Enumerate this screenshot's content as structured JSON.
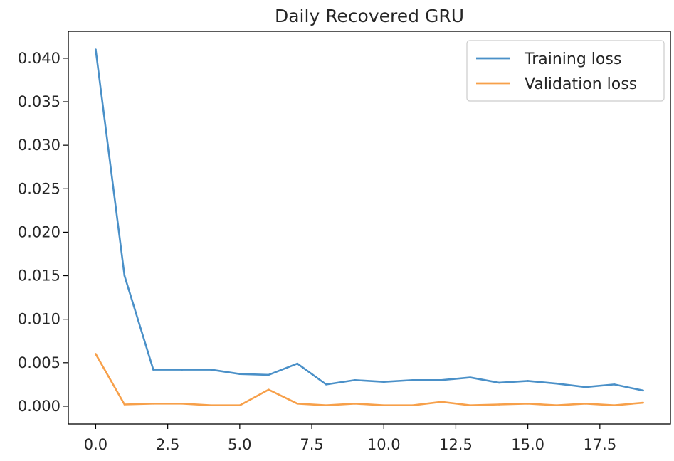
{
  "chart_data": {
    "type": "line",
    "title": "Daily Recovered GRU",
    "xlabel": "",
    "ylabel": "",
    "x": [
      0,
      1,
      2,
      3,
      4,
      5,
      6,
      7,
      8,
      9,
      10,
      11,
      12,
      13,
      14,
      15,
      16,
      17,
      18,
      19
    ],
    "xlim": [
      -0.95,
      19.95
    ],
    "ylim": [
      -0.00205,
      0.0431
    ],
    "x_ticks": [
      0,
      2.5,
      5,
      7.5,
      10,
      12.5,
      15,
      17.5
    ],
    "x_tick_labels": [
      "0.0",
      "2.5",
      "5.0",
      "7.5",
      "10.0",
      "12.5",
      "15.0",
      "17.5"
    ],
    "y_ticks": [
      0,
      0.005,
      0.01,
      0.015,
      0.02,
      0.025,
      0.03,
      0.035,
      0.04
    ],
    "y_tick_labels": [
      "0.000",
      "0.005",
      "0.010",
      "0.015",
      "0.020",
      "0.025",
      "0.030",
      "0.035",
      "0.040"
    ],
    "grid": false,
    "legend": "top-right",
    "series": [
      {
        "name": "Training loss",
        "color": "#4a90c8",
        "values": [
          0.041,
          0.015,
          0.0042,
          0.0042,
          0.0042,
          0.0037,
          0.0036,
          0.0049,
          0.0025,
          0.003,
          0.0028,
          0.003,
          0.003,
          0.0033,
          0.0027,
          0.0029,
          0.0026,
          0.0022,
          0.0025,
          0.0018
        ]
      },
      {
        "name": "Validation loss",
        "color": "#f7a04a",
        "values": [
          0.006,
          0.0002,
          0.0003,
          0.0003,
          0.0001,
          0.0001,
          0.0019,
          0.0003,
          0.0001,
          0.0003,
          0.0001,
          0.0001,
          0.0005,
          0.0001,
          0.0002,
          0.0003,
          0.0001,
          0.0003,
          0.0001,
          0.0004
        ]
      }
    ]
  }
}
